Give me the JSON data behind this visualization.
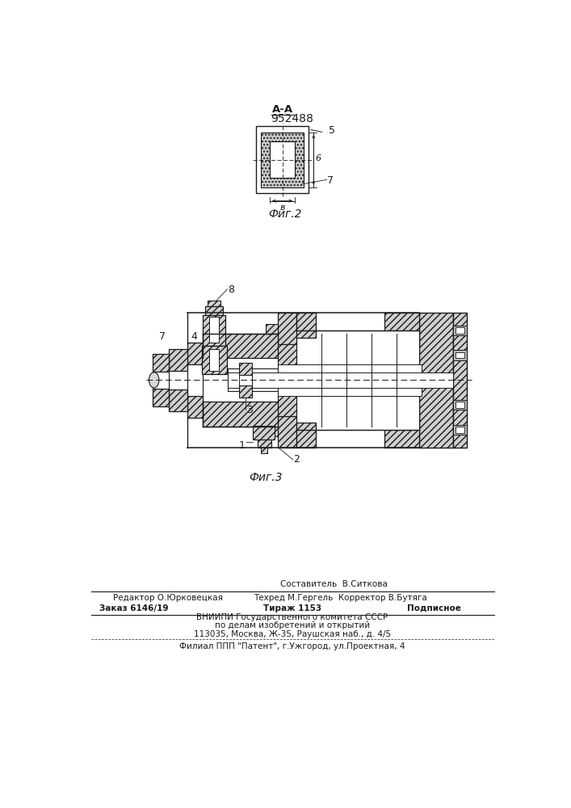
{
  "title": "952488",
  "fig2_label": "Фиг.2",
  "fig3_label": "Фиг.3",
  "section_label": "А-А",
  "line_color": "#1a1a1a",
  "footer_line1_left": "Редактор О.Юрковецкая",
  "footer_line1_right": "Составитель  В.Ситкова",
  "footer_line2_right": "Техред М.Гергель  Корректор В.Бутяга",
  "footer_zakaz": "Заказ 6146/19",
  "footer_tirazh": "Тираж 1153",
  "footer_podpisnoe": "Подписное",
  "footer_vnipi1": "ВНИИПИ Государственного комитета СССР",
  "footer_vnipi2": "по делам изобретений и открытий",
  "footer_vnipi3": "113035, Москва, Ж-35, Раушская наб., д. 4/5",
  "footer_filial": "Филиал ППП \"Патент\", г.Ужгород, ул.Проектная, 4"
}
